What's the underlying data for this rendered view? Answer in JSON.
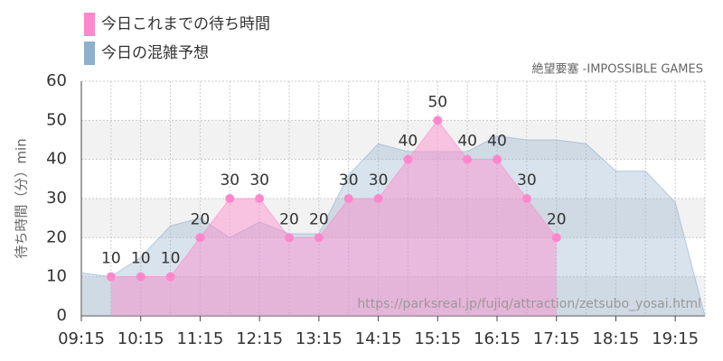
{
  "chart_data": {
    "type": "area",
    "subtitle": "絶望要塞 -IMPOSSIBLE GAMES",
    "y_label": "待ち時間（分）min",
    "annotation": "https://parksreal.jp/fujiq/attraction/zetsubo_yosai.html",
    "x": [
      9.25,
      9.75,
      10.25,
      10.75,
      11.25,
      11.75,
      12.25,
      12.75,
      13.25,
      13.75,
      14.25,
      14.75,
      15.25,
      15.75,
      16.25,
      16.75,
      17.25,
      17.75,
      18.25,
      18.75,
      19.25,
      19.75
    ],
    "series": [
      {
        "name": "今日の混雑予想",
        "color": "#8eb0cc",
        "values": [
          11,
          10,
          15,
          23,
          25,
          20,
          24,
          21,
          21,
          36,
          44,
          42,
          42,
          42,
          46,
          45,
          45,
          44,
          37,
          37,
          29,
          0
        ]
      },
      {
        "name": "今日これまでの待ち時間",
        "color": "#ff88cc",
        "values": [
          null,
          10,
          10,
          10,
          20,
          30,
          30,
          20,
          20,
          30,
          30,
          40,
          50,
          40,
          40,
          30,
          20,
          null,
          null,
          null,
          null,
          null
        ]
      }
    ],
    "xlim": [
      9.25,
      19.75
    ],
    "xticks": [
      {
        "value": 9.25,
        "label": "09:15"
      },
      {
        "value": 10.25,
        "label": "10:15"
      },
      {
        "value": 11.25,
        "label": "11:15"
      },
      {
        "value": 12.25,
        "label": "12:15"
      },
      {
        "value": 13.25,
        "label": "13:15"
      },
      {
        "value": 14.25,
        "label": "14:15"
      },
      {
        "value": 15.25,
        "label": "15:15"
      },
      {
        "value": 16.25,
        "label": "16:15"
      },
      {
        "value": 17.25,
        "label": "17:15"
      },
      {
        "value": 18.25,
        "label": "18:15"
      },
      {
        "value": 19.25,
        "label": "19:15"
      }
    ],
    "ylim": [
      0,
      60
    ],
    "yticks": [
      0,
      10,
      20,
      30,
      40,
      50,
      60
    ],
    "grid": true
  }
}
